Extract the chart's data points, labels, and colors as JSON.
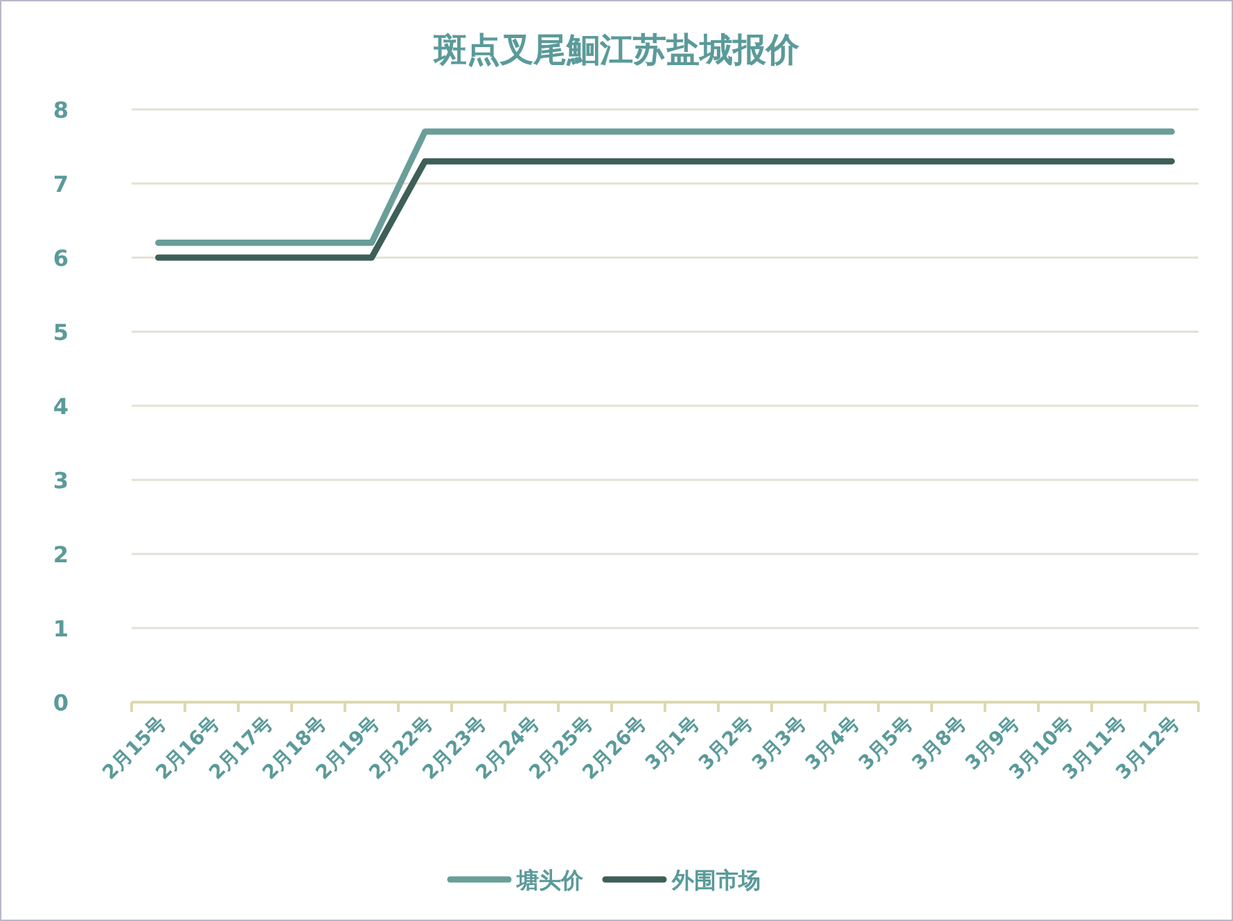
{
  "chart_data": {
    "type": "line",
    "title": "斑点叉尾鮰江苏盐城报价",
    "categories": [
      "2月15号",
      "2月16号",
      "2月17号",
      "2月18号",
      "2月19号",
      "2月22号",
      "2月23号",
      "2月24号",
      "2月25号",
      "2月26号",
      "3月1号",
      "3月2号",
      "3月3号",
      "3月4号",
      "3月5号",
      "3月8号",
      "3月9号",
      "3月10号",
      "3月11号",
      "3月12号"
    ],
    "series": [
      {
        "name": "塘头价",
        "color": "#6a9e99",
        "values": [
          6.2,
          6.2,
          6.2,
          6.2,
          6.2,
          7.7,
          7.7,
          7.7,
          7.7,
          7.7,
          7.7,
          7.7,
          7.7,
          7.7,
          7.7,
          7.7,
          7.7,
          7.7,
          7.7,
          7.7
        ]
      },
      {
        "name": "外围市场",
        "color": "#3e5f58",
        "values": [
          6.0,
          6.0,
          6.0,
          6.0,
          6.0,
          7.3,
          7.3,
          7.3,
          7.3,
          7.3,
          7.3,
          7.3,
          7.3,
          7.3,
          7.3,
          7.3,
          7.3,
          7.3,
          7.3,
          7.3
        ]
      }
    ],
    "ylim": [
      0,
      8
    ],
    "yticks": [
      0,
      1,
      2,
      3,
      4,
      5,
      6,
      7,
      8
    ],
    "grid": "y",
    "legend": "bottom",
    "marker": "none",
    "line_style": "solid"
  }
}
